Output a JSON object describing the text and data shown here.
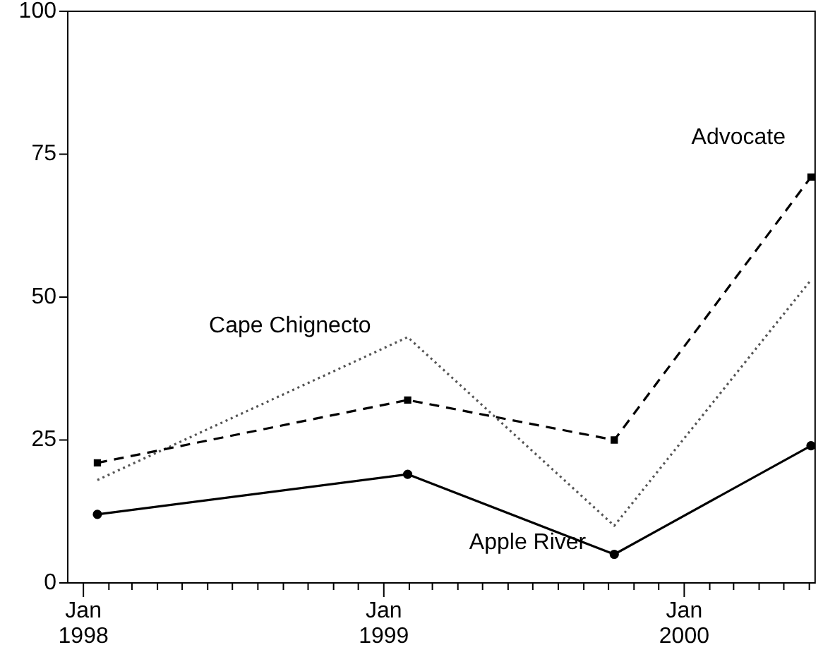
{
  "chart_data": {
    "type": "line",
    "x": [
      "1998-01-18",
      "1999-01-30",
      "1999-10-08",
      "2000-06-03"
    ],
    "series": [
      {
        "name": "Apple River",
        "color": "#000000",
        "values": [
          12,
          19,
          5,
          24
        ],
        "line_style": "solid",
        "marker": "circle"
      },
      {
        "name": "Advocate",
        "color": "#000000",
        "values": [
          21,
          32,
          25,
          71
        ],
        "line_style": "dashed",
        "marker": "square"
      },
      {
        "name": "Cape Chignecto",
        "color": "#555555",
        "values": [
          18,
          43,
          10,
          53
        ],
        "line_style": "dotted",
        "marker": "none"
      }
    ],
    "xlim": [
      "1997-12-13",
      "2000-06-08"
    ],
    "xticks": [
      {
        "value": "1998-01",
        "label": "Jan\n1998"
      },
      {
        "value": "1998-02",
        "label": null
      },
      {
        "value": "1998-03",
        "label": null
      },
      {
        "value": "1998-04",
        "label": null
      },
      {
        "value": "1998-05",
        "label": null
      },
      {
        "value": "1998-06",
        "label": null
      },
      {
        "value": "1998-07",
        "label": null
      },
      {
        "value": "1998-08",
        "label": null
      },
      {
        "value": "1998-09",
        "label": null
      },
      {
        "value": "1998-10",
        "label": null
      },
      {
        "value": "1998-11",
        "label": null
      },
      {
        "value": "1998-12",
        "label": null
      },
      {
        "value": "1999-01",
        "label": "Jan\n1999"
      },
      {
        "value": "1999-02",
        "label": null
      },
      {
        "value": "1999-03",
        "label": null
      },
      {
        "value": "1999-04",
        "label": null
      },
      {
        "value": "1999-05",
        "label": null
      },
      {
        "value": "1999-06",
        "label": null
      },
      {
        "value": "1999-07",
        "label": null
      },
      {
        "value": "1999-08",
        "label": null
      },
      {
        "value": "1999-09",
        "label": null
      },
      {
        "value": "1999-10",
        "label": null
      },
      {
        "value": "1999-11",
        "label": null
      },
      {
        "value": "1999-12",
        "label": null
      },
      {
        "value": "2000-01",
        "label": "Jan\n2000"
      },
      {
        "value": "2000-02",
        "label": null
      },
      {
        "value": "2000-03",
        "label": null
      },
      {
        "value": "2000-04",
        "label": null
      },
      {
        "value": "2000-05",
        "label": null
      },
      {
        "value": "2000-06",
        "label": null
      }
    ],
    "ylim": [
      0,
      100
    ],
    "yticks": [
      0,
      25,
      50,
      75,
      100
    ],
    "grid": false,
    "legend": false
  }
}
